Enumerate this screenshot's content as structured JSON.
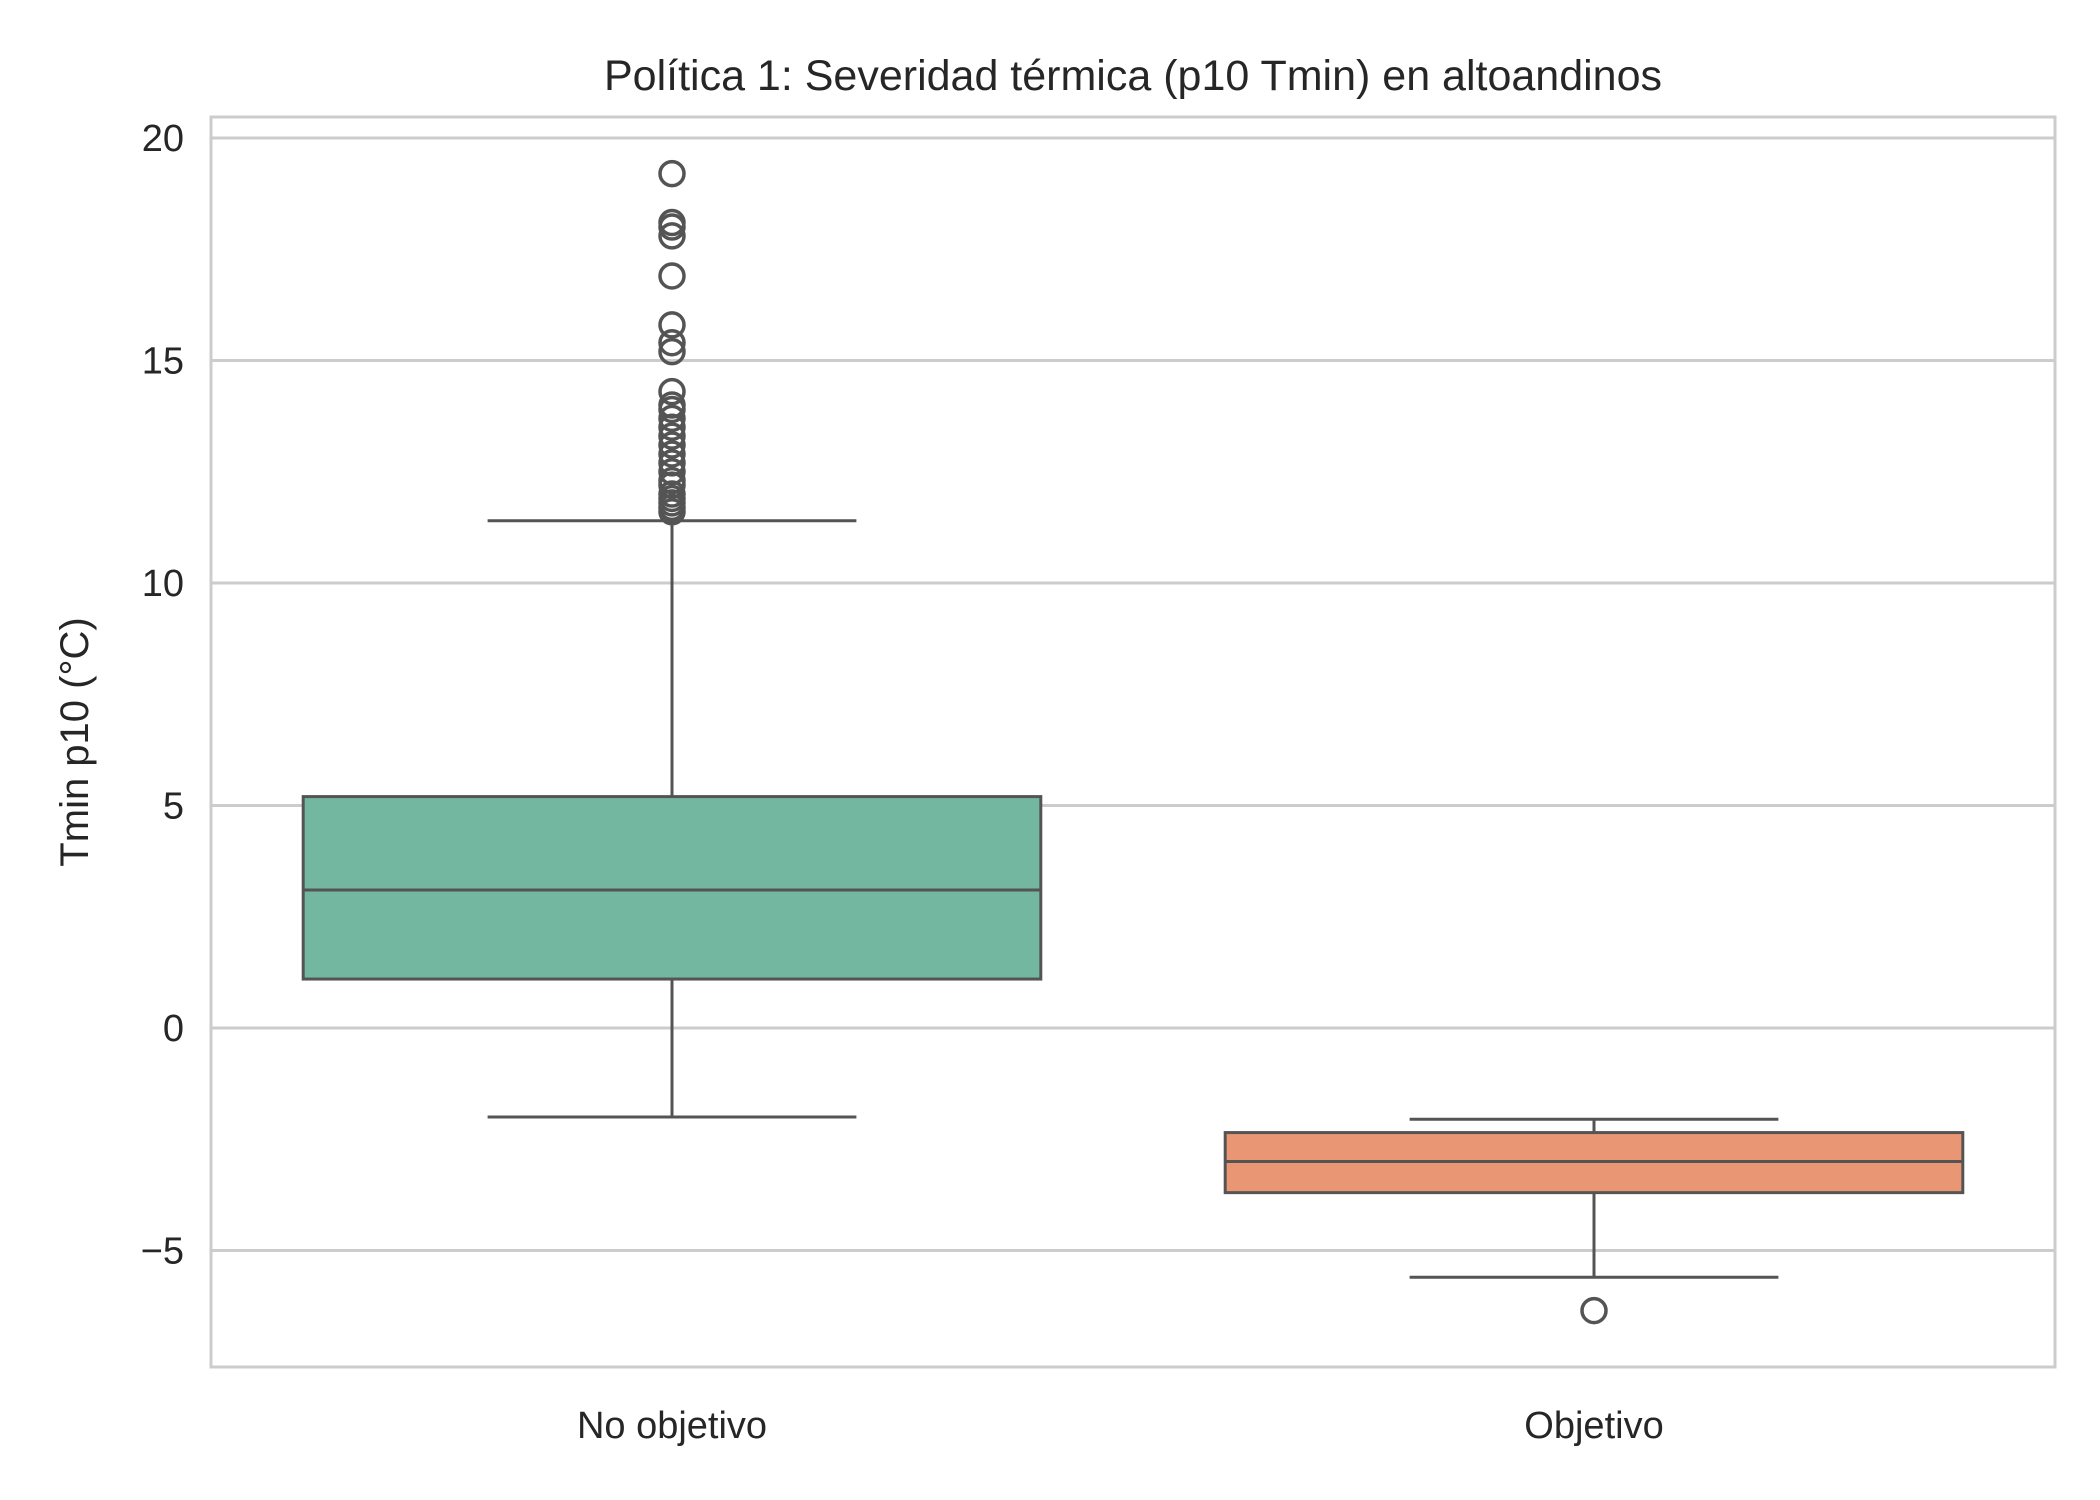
{
  "chart_data": {
    "type": "box",
    "title": "Política 1: Severidad térmica (p10 Tmin) en altoandinos",
    "xlabel": "",
    "ylabel": "Tmin p10 (°C)",
    "ylim": [
      -7.7,
      20.5
    ],
    "yticks": [
      20,
      15,
      10,
      5,
      0,
      -5
    ],
    "ytick_labels": [
      "20",
      "15",
      "10",
      "5",
      "0",
      "−5"
    ],
    "grid": true,
    "categories": [
      "No objetivo",
      "Objetivo"
    ],
    "boxes": [
      {
        "category": "No objetivo",
        "color": "#73b7a0",
        "whisker_low": -2.0,
        "q1": 1.1,
        "median": 3.1,
        "q3": 5.2,
        "whisker_high": 11.4,
        "outliers": [
          19.2,
          18.1,
          18.0,
          17.8,
          16.9,
          15.8,
          15.4,
          15.2,
          14.3,
          14.0,
          13.9,
          13.7,
          13.5,
          13.3,
          13.1,
          12.9,
          12.7,
          12.5,
          12.3,
          12.2,
          12.0,
          11.9,
          11.8,
          11.7,
          11.6
        ]
      },
      {
        "category": "Objetivo",
        "color": "#e99675",
        "whisker_low": -5.6,
        "q1": -3.7,
        "median": -3.0,
        "q3": -2.35,
        "whisker_high": -2.05,
        "outliers": [
          -6.35
        ]
      }
    ],
    "colors": {
      "grid": "#cccccc",
      "spine": "#cccccc",
      "line": "#545454",
      "text": "#262626"
    }
  }
}
